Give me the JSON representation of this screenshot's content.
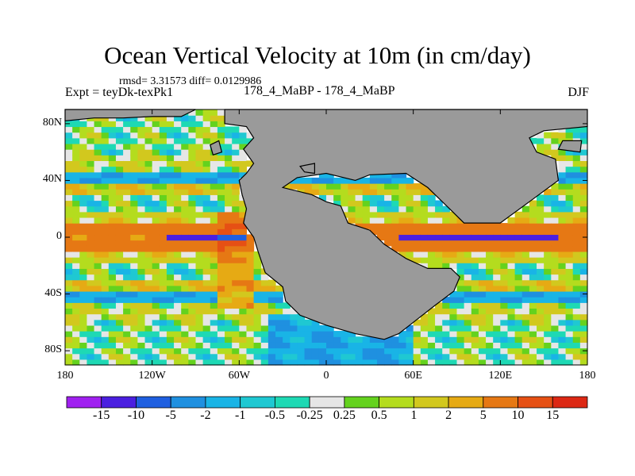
{
  "chart_data": {
    "type": "heatmap",
    "title": "Ocean Vertical Velocity at 10m (in cm/day)",
    "stats": "rmsd= 3.31573 diff= 0.0129986",
    "left_label": "Expt = teyDk-texPk1",
    "center_label": "178_4_MaBP - 178_4_MaBP",
    "right_label": "DJF",
    "xlim": [
      -180,
      180
    ],
    "ylim": [
      -90,
      90
    ],
    "x_ticks": [
      {
        "value": -180,
        "label": "180"
      },
      {
        "value": -120,
        "label": "120W"
      },
      {
        "value": -60,
        "label": "60W"
      },
      {
        "value": 0,
        "label": "0"
      },
      {
        "value": 60,
        "label": "60E"
      },
      {
        "value": 120,
        "label": "120E"
      },
      {
        "value": 180,
        "label": "180"
      }
    ],
    "y_ticks": [
      {
        "value": 80,
        "label": "80N"
      },
      {
        "value": 40,
        "label": "40N"
      },
      {
        "value": 0,
        "label": "0"
      },
      {
        "value": -40,
        "label": "40S"
      },
      {
        "value": -80,
        "label": "80S"
      }
    ],
    "levels": [
      "-15",
      "-10",
      "-5",
      "-2",
      "-1",
      "-0.5",
      "-0.25",
      "0.25",
      "0.5",
      "1",
      "2",
      "5",
      "10",
      "15"
    ],
    "level_colors": [
      "#a020f0",
      "#4a1fe0",
      "#1f5fe0",
      "#1f90e0",
      "#19b4e6",
      "#1fc8d2",
      "#1ed9b4",
      "#e6e6e6",
      "#64d21e",
      "#b4dc1e",
      "#d2c81e",
      "#e6aa14",
      "#e67814",
      "#e65014",
      "#dc2814"
    ],
    "land_color": "#9a9a9a"
  }
}
